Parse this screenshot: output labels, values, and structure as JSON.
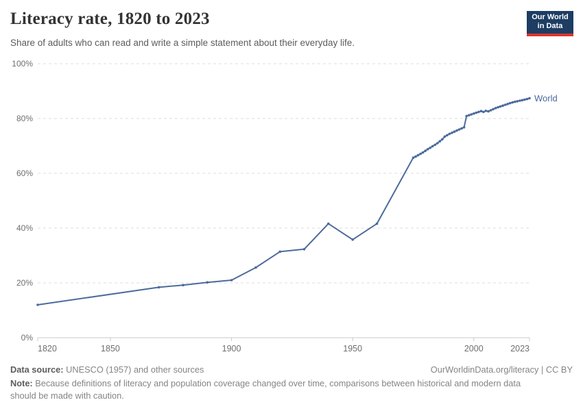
{
  "header": {
    "title": "Literacy rate, 1820 to 2023",
    "subtitle": "Share of adults who can read and write a simple statement about their everyday life.",
    "logo": {
      "line1": "Our World",
      "line2": "in Data"
    }
  },
  "chart_data": {
    "type": "line",
    "title": "Literacy rate, 1820 to 2023",
    "xlabel": "",
    "ylabel": "",
    "xlim": [
      1820,
      2023
    ],
    "ylim": [
      0,
      100
    ],
    "x_ticks": [
      1820,
      1850,
      1900,
      1950,
      2000,
      2023
    ],
    "y_ticks": [
      0,
      20,
      40,
      60,
      80,
      100
    ],
    "y_tick_suffix": "%",
    "grid": "horizontal-dashed",
    "legend_position": "end-of-line",
    "series": [
      {
        "name": "World",
        "color": "#4c6a9c",
        "points": [
          [
            1820,
            12.0
          ],
          [
            1870,
            18.4
          ],
          [
            1880,
            19.2
          ],
          [
            1890,
            20.2
          ],
          [
            1900,
            21.0
          ],
          [
            1910,
            25.6
          ],
          [
            1920,
            31.4
          ],
          [
            1930,
            32.3
          ],
          [
            1940,
            41.6
          ],
          [
            1950,
            35.8
          ],
          [
            1960,
            41.6
          ],
          [
            1975,
            65.7
          ],
          [
            1976,
            66.1
          ],
          [
            1977,
            66.6
          ],
          [
            1978,
            67.1
          ],
          [
            1979,
            67.6
          ],
          [
            1980,
            68.2
          ],
          [
            1981,
            68.8
          ],
          [
            1982,
            69.3
          ],
          [
            1983,
            69.9
          ],
          [
            1984,
            70.4
          ],
          [
            1985,
            71.0
          ],
          [
            1986,
            71.7
          ],
          [
            1987,
            72.4
          ],
          [
            1988,
            73.4
          ],
          [
            1989,
            73.9
          ],
          [
            1990,
            74.4
          ],
          [
            1991,
            74.8
          ],
          [
            1992,
            75.2
          ],
          [
            1993,
            75.6
          ],
          [
            1994,
            76.0
          ],
          [
            1995,
            76.4
          ],
          [
            1996,
            76.8
          ],
          [
            1997,
            80.9
          ],
          [
            1998,
            81.2
          ],
          [
            1999,
            81.5
          ],
          [
            2000,
            81.8
          ],
          [
            2001,
            82.1
          ],
          [
            2002,
            82.4
          ],
          [
            2003,
            82.7
          ],
          [
            2004,
            82.4
          ],
          [
            2005,
            82.8
          ],
          [
            2006,
            82.6
          ],
          [
            2007,
            83.0
          ],
          [
            2008,
            83.4
          ],
          [
            2009,
            83.8
          ],
          [
            2010,
            84.1
          ],
          [
            2011,
            84.4
          ],
          [
            2012,
            84.7
          ],
          [
            2013,
            85.0
          ],
          [
            2014,
            85.3
          ],
          [
            2015,
            85.6
          ],
          [
            2016,
            85.9
          ],
          [
            2017,
            86.1
          ],
          [
            2018,
            86.3
          ],
          [
            2019,
            86.5
          ],
          [
            2020,
            86.7
          ],
          [
            2021,
            86.9
          ],
          [
            2022,
            87.1
          ],
          [
            2023,
            87.4
          ]
        ]
      }
    ]
  },
  "colors": {
    "line": "#4c6a9c",
    "grid": "#dcdcdc",
    "axis": "#c8c8c8",
    "tick_text": "#6e6e6e"
  },
  "footer": {
    "source_label": "Data source:",
    "source_text": " UNESCO (1957) and other sources",
    "license_text": "OurWorldinData.org/literacy | CC BY",
    "note_label": "Note:",
    "note_text": " Because definitions of literacy and population coverage changed over time, comparisons between historical and modern data should be made with caution."
  }
}
